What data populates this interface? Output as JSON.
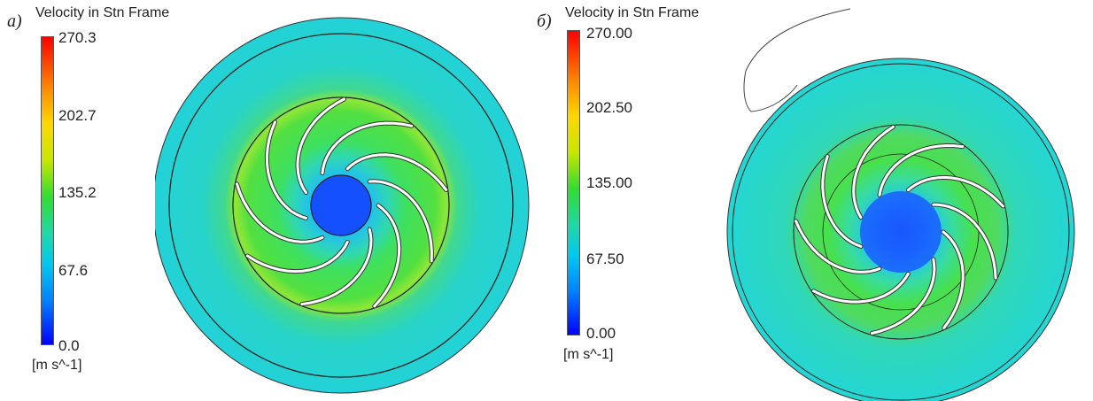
{
  "panels": [
    {
      "letter": "a)",
      "legend_title": "Velocity in Stn Frame",
      "unit": "[m s^-1]",
      "ticks": [
        "270.3",
        "202.7",
        "135.2",
        "67.6",
        "0.0"
      ]
    },
    {
      "letter": "б)",
      "legend_title": "Velocity in Stn Frame",
      "unit": "[m s^-1]",
      "ticks": [
        "270.00",
        "202.50",
        "135.00",
        "67.50",
        "0.00"
      ]
    }
  ],
  "colors": {
    "outer_field": "#21d6d6",
    "ring_field": "#36de6c",
    "eye_blue": "#0d5cff",
    "blade": "#ffffff",
    "outline": "#222222"
  },
  "blade_count": 9
}
